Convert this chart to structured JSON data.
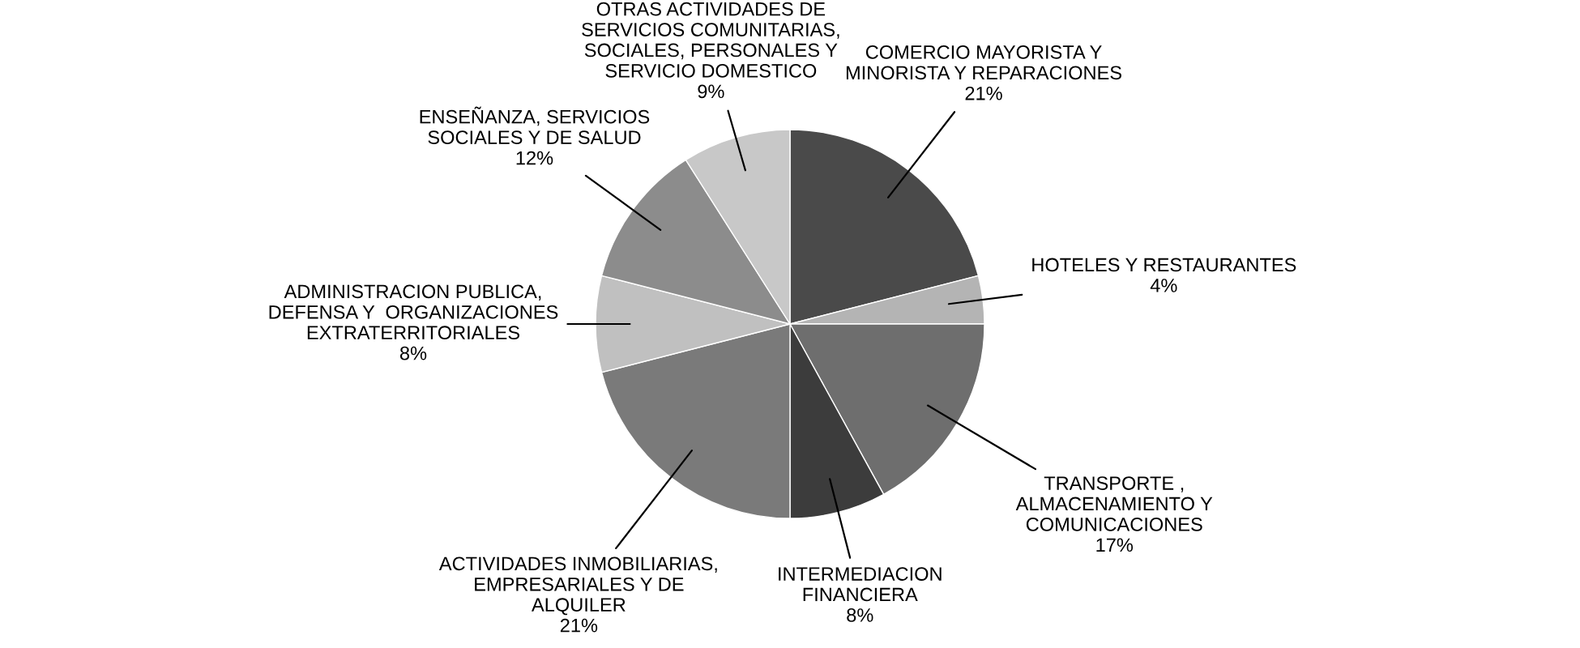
{
  "chart_data": {
    "type": "pie",
    "categories": [
      "COMERCIO MAYORISTA Y\nMINORISTA Y REPARACIONES",
      "HOTELES Y RESTAURANTES",
      "TRANSPORTE ,\nALMACENAMIENTO Y\nCOMUNICACIONES",
      "INTERMEDIACION\nFINANCIERA",
      "ACTIVIDADES INMOBILIARIAS,\nEMPRESARIALES Y DE\nALQUILER",
      "ADMINISTRACION PUBLICA,\nDEFENSA Y  ORGANIZACIONES\nEXTRATERRITORIALES",
      "ENSEÑANZA, SERVICIOS\nSOCIALES Y DE SALUD",
      "OTRAS ACTIVIDADES DE\nSERVICIOS COMUNITARIAS,\nSOCIALES, PERSONALES Y\nSERVICIO DOMESTICO"
    ],
    "values": [
      21,
      4,
      17,
      8,
      21,
      8,
      12,
      9
    ],
    "value_labels": [
      "21%",
      "4%",
      "17%",
      "8%",
      "21%",
      "8%",
      "12%",
      "9%"
    ],
    "colors": [
      "#4a4a4a",
      "#b4b4b4",
      "#6e6e6e",
      "#3c3c3c",
      "#7a7a7a",
      "#c0c0c0",
      "#8c8c8c",
      "#c8c8c8"
    ]
  }
}
